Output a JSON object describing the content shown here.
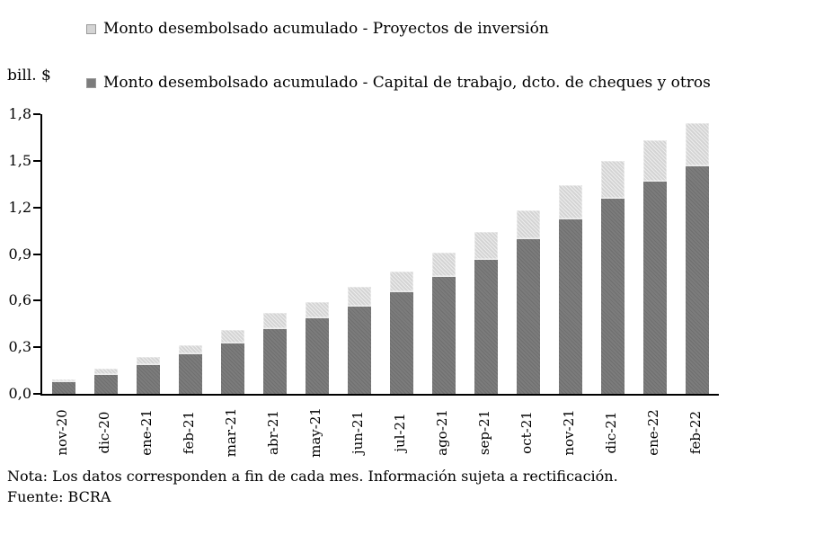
{
  "unit_label": "bill. $",
  "legend": {
    "items": [
      {
        "label": "Monto desembolsado acumulado - Proyectos de inversión",
        "color": "#d4d4d4"
      },
      {
        "label": "Monto desembolsado acumulado - Capital de trabajo, dcto. de cheques y otros",
        "color": "#7c7c7c"
      }
    ]
  },
  "chart_data": {
    "type": "bar",
    "stacked": true,
    "title": "",
    "xlabel": "",
    "ylabel": "bill. $",
    "ylim": [
      0,
      1.8
    ],
    "ytick_step": 0.3,
    "ytick_labels": [
      "0,0",
      "0,3",
      "0,6",
      "0,9",
      "1,2",
      "1,5",
      "1,8"
    ],
    "grid": false,
    "legend_position": "top-left",
    "categories": [
      "nov-20",
      "dic-20",
      "ene-21",
      "feb-21",
      "mar-21",
      "abr-21",
      "may-21",
      "jun-21",
      "jul-21",
      "ago-21",
      "sep-21",
      "oct-21",
      "nov-21",
      "dic-21",
      "ene-22",
      "feb-22"
    ],
    "series": [
      {
        "name": "Monto desembolsado acumulado - Capital de trabajo, dcto. de cheques y otros",
        "color": "#7c7c7c",
        "values": [
          0.08,
          0.13,
          0.19,
          0.26,
          0.33,
          0.42,
          0.49,
          0.57,
          0.66,
          0.76,
          0.87,
          1.0,
          1.13,
          1.26,
          1.37,
          1.47
        ]
      },
      {
        "name": "Monto desembolsado acumulado - Proyectos de inversión",
        "color": "#d4d4d4",
        "values": [
          0.01,
          0.03,
          0.05,
          0.05,
          0.08,
          0.1,
          0.1,
          0.12,
          0.13,
          0.15,
          0.17,
          0.18,
          0.21,
          0.24,
          0.26,
          0.27
        ]
      }
    ]
  },
  "footer": {
    "note": "Nota: Los datos corresponden a fin de cada mes. Información sujeta a rectificación.",
    "source": "Fuente: BCRA"
  }
}
